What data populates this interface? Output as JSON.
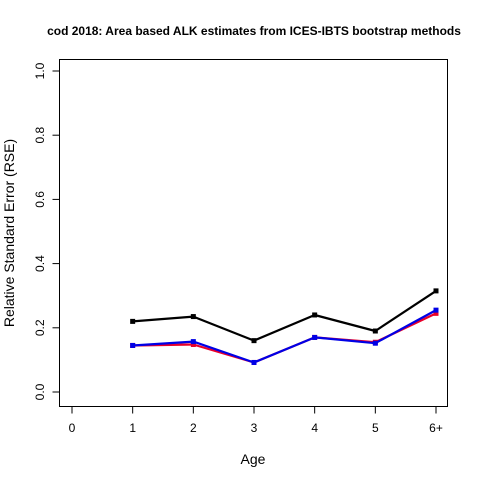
{
  "chart_data": {
    "type": "line",
    "title": "cod 2018: Area based ALK estimates from ICES-IBTS bootstrap methods",
    "xlabel": "Age",
    "ylabel": "Relative Standard Error (RSE)",
    "x_ticks": [
      "0",
      "1",
      "2",
      "3",
      "4",
      "5",
      "6+"
    ],
    "x_range": [
      0,
      6
    ],
    "ylim": [
      0,
      1
    ],
    "y_ticks": [
      "0.0",
      "0.2",
      "0.4",
      "0.6",
      "0.8",
      "1.0"
    ],
    "grid": false,
    "legend": "none",
    "series": [
      {
        "color": "#000000",
        "x": [
          1,
          2,
          3,
          4,
          5,
          6
        ],
        "values": [
          0.22,
          0.235,
          0.16,
          0.24,
          0.19,
          0.315
        ]
      },
      {
        "color": "#e8002a",
        "x": [
          1,
          2,
          3,
          4,
          5,
          6
        ],
        "values": [
          0.145,
          0.148,
          0.092,
          0.17,
          0.155,
          0.245
        ]
      },
      {
        "color": "#0000e6",
        "x": [
          1,
          2,
          3,
          4,
          5,
          6
        ],
        "values": [
          0.145,
          0.157,
          0.092,
          0.17,
          0.152,
          0.255
        ]
      }
    ]
  }
}
